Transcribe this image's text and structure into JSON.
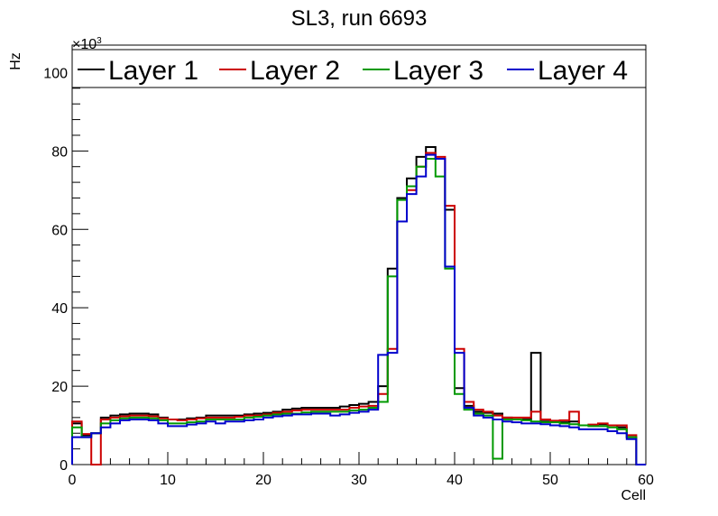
{
  "chart_data": {
    "type": "line",
    "title": "SL3, run 6693",
    "xlabel": "Cell",
    "ylabel": "Hz",
    "y_multiplier": "×10",
    "y_multiplier_exp": "3",
    "xlim": [
      0,
      60
    ],
    "ylim": [
      0,
      107
    ],
    "x_ticks": [
      0,
      10,
      20,
      30,
      40,
      50,
      60
    ],
    "y_ticks": [
      0,
      20,
      40,
      60,
      80,
      100
    ],
    "grid": false,
    "legend_position": "top",
    "bin_edges_start": 0,
    "bin_width": 1,
    "series": [
      {
        "name": "Layer 1",
        "color": "#000000",
        "values": [
          10.5,
          7.5,
          8.0,
          12.0,
          12.5,
          12.8,
          13.0,
          13.0,
          12.8,
          12.0,
          11.5,
          11.5,
          11.8,
          12.0,
          12.5,
          12.5,
          12.5,
          12.5,
          12.8,
          13.0,
          13.2,
          13.5,
          14.0,
          14.3,
          14.5,
          14.5,
          14.5,
          14.5,
          14.8,
          15.2,
          15.5,
          16.0,
          20.0,
          50.0,
          68.0,
          73.0,
          78.5,
          81.0,
          78.0,
          65.0,
          19.5,
          15.0,
          13.5,
          13.2,
          13.0,
          12.0,
          11.5,
          11.5,
          28.5,
          11.0,
          11.0,
          10.8,
          11.0,
          10.0,
          10.0,
          10.3,
          10.0,
          9.5,
          7.0,
          0
        ]
      },
      {
        "name": "Layer 2",
        "color": "#cc0000",
        "values": [
          11.0,
          7.8,
          0,
          11.5,
          12.0,
          12.3,
          12.5,
          12.5,
          12.3,
          11.8,
          11.5,
          11.3,
          11.5,
          11.8,
          12.0,
          12.0,
          12.0,
          12.2,
          12.5,
          12.5,
          12.8,
          13.2,
          13.5,
          13.8,
          14.0,
          14.0,
          14.0,
          14.0,
          14.0,
          14.5,
          14.8,
          15.0,
          18.0,
          29.5,
          62.0,
          70.0,
          76.0,
          79.5,
          78.5,
          66.0,
          29.5,
          16.0,
          14.0,
          13.5,
          12.5,
          12.0,
          12.0,
          12.0,
          13.5,
          11.5,
          11.2,
          11.3,
          13.5,
          10.0,
          10.2,
          10.5,
          10.0,
          10.0,
          7.5,
          0
        ]
      },
      {
        "name": "Layer 3",
        "color": "#009900",
        "values": [
          9.5,
          7.0,
          8.0,
          10.5,
          11.3,
          11.8,
          12.0,
          12.0,
          11.8,
          11.3,
          10.5,
          10.5,
          10.8,
          11.0,
          11.5,
          11.5,
          11.5,
          11.5,
          12.0,
          12.2,
          12.5,
          12.8,
          13.0,
          13.0,
          13.3,
          13.5,
          13.5,
          13.5,
          13.5,
          13.8,
          14.0,
          14.5,
          16.0,
          48.0,
          67.5,
          71.0,
          76.0,
          78.0,
          73.5,
          50.0,
          18.0,
          14.0,
          13.0,
          12.5,
          1.5,
          11.5,
          11.5,
          11.3,
          11.0,
          10.8,
          10.8,
          10.5,
          10.3,
          10.0,
          9.8,
          9.8,
          9.5,
          9.0,
          7.0,
          0
        ]
      },
      {
        "name": "Layer 4",
        "color": "#0000cc",
        "values": [
          7.0,
          7.0,
          8.0,
          9.5,
          10.5,
          11.3,
          11.5,
          11.5,
          11.3,
          10.5,
          9.8,
          9.8,
          10.2,
          10.5,
          11.0,
          10.5,
          11.0,
          11.0,
          11.3,
          11.5,
          12.0,
          12.3,
          12.5,
          12.8,
          12.8,
          13.0,
          13.0,
          12.5,
          12.8,
          13.2,
          13.5,
          14.0,
          28.0,
          28.5,
          62.0,
          69.0,
          73.5,
          79.0,
          78.0,
          50.5,
          28.5,
          14.5,
          12.5,
          12.0,
          11.5,
          11.0,
          10.8,
          10.5,
          10.5,
          10.3,
          10.0,
          9.8,
          9.5,
          9.0,
          9.0,
          9.0,
          8.5,
          8.0,
          6.5,
          0
        ]
      }
    ]
  }
}
